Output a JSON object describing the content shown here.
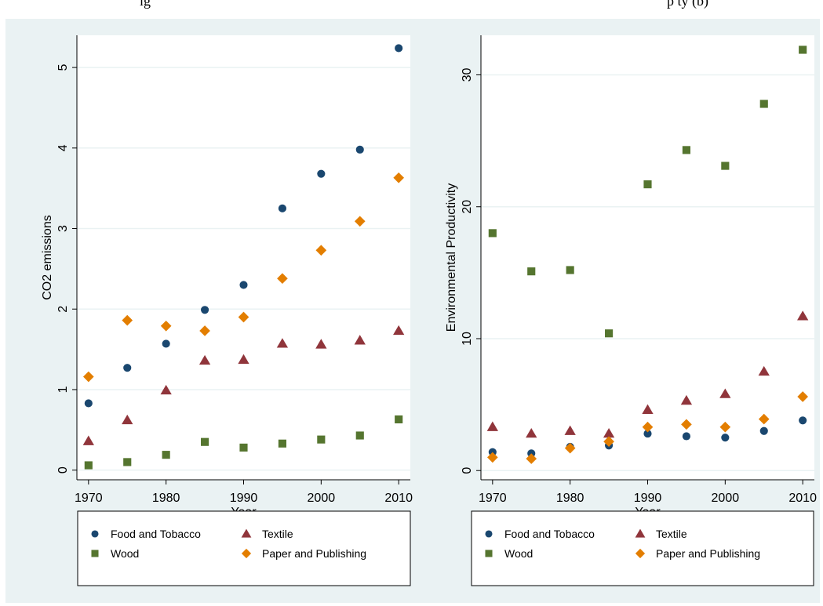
{
  "header": {
    "caption_left": "ig",
    "caption_right": "p         ty (b)"
  },
  "chart_data": [
    {
      "type": "scatter",
      "xlabel": "Year",
      "ylabel": "CO2 emissions",
      "xlim": [
        1968.5,
        2011.5
      ],
      "ylim": [
        -0.12,
        5.4
      ],
      "xticks": [
        1970,
        1980,
        1990,
        2000,
        2010
      ],
      "yticks": [
        0,
        1,
        2,
        3,
        4,
        5
      ],
      "grid": true,
      "legend_position": "bottom",
      "x": [
        1970,
        1975,
        1980,
        1985,
        1990,
        1995,
        2000,
        2005,
        2010
      ],
      "series": [
        {
          "name": "Food and Tobacco",
          "marker": "circle",
          "color": "#1a476f",
          "values": [
            0.83,
            1.27,
            1.57,
            1.99,
            2.3,
            3.25,
            3.68,
            3.98,
            5.24
          ]
        },
        {
          "name": "Textile",
          "marker": "triangle",
          "color": "#90353b",
          "values": [
            0.36,
            0.62,
            0.99,
            1.36,
            1.37,
            1.57,
            1.56,
            1.61,
            1.73
          ]
        },
        {
          "name": "Wood",
          "marker": "square",
          "color": "#55752f",
          "values": [
            0.06,
            0.1,
            0.19,
            0.35,
            0.28,
            0.33,
            0.38,
            0.43,
            0.63
          ]
        },
        {
          "name": "Paper and Publishing",
          "marker": "diamond",
          "color": "#e37e00",
          "values": [
            1.16,
            1.86,
            1.79,
            1.73,
            1.9,
            2.38,
            2.73,
            3.09,
            3.63
          ]
        }
      ]
    },
    {
      "type": "scatter",
      "xlabel": "Year",
      "ylabel": "Environmental Productivity",
      "xlim": [
        1968.5,
        2011.5
      ],
      "ylim": [
        -0.7,
        33.0
      ],
      "xticks": [
        1970,
        1980,
        1990,
        2000,
        2010
      ],
      "yticks": [
        0,
        10,
        20,
        30
      ],
      "grid": true,
      "legend_position": "bottom",
      "x": [
        1970,
        1975,
        1980,
        1985,
        1990,
        1995,
        2000,
        2005,
        2010
      ],
      "series": [
        {
          "name": "Food and Tobacco",
          "marker": "circle",
          "color": "#1a476f",
          "values": [
            1.4,
            1.3,
            1.8,
            1.9,
            2.8,
            2.6,
            2.5,
            3.0,
            3.8
          ]
        },
        {
          "name": "Textile",
          "marker": "triangle",
          "color": "#90353b",
          "values": [
            3.3,
            2.8,
            3.0,
            2.8,
            4.6,
            5.3,
            5.8,
            7.5,
            11.7
          ]
        },
        {
          "name": "Wood",
          "marker": "square",
          "color": "#55752f",
          "values": [
            18.0,
            15.1,
            15.2,
            10.4,
            21.7,
            24.3,
            23.1,
            27.8,
            31.9
          ]
        },
        {
          "name": "Paper and Publishing",
          "marker": "diamond",
          "color": "#e37e00",
          "values": [
            1.0,
            0.9,
            1.7,
            2.2,
            3.3,
            3.5,
            3.3,
            3.9,
            5.6
          ]
        }
      ]
    }
  ]
}
